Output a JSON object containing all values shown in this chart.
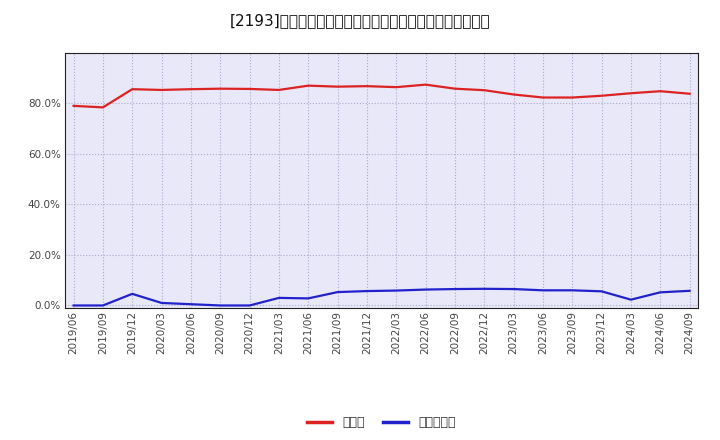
{
  "title": "[2193]　現須金、有利子負債の総資産に対する比率の推移",
  "x_labels": [
    "2019/06",
    "2019/09",
    "2019/12",
    "2020/03",
    "2020/06",
    "2020/09",
    "2020/12",
    "2021/03",
    "2021/06",
    "2021/09",
    "2021/12",
    "2022/03",
    "2022/06",
    "2022/09",
    "2022/12",
    "2023/03",
    "2023/06",
    "2023/09",
    "2023/12",
    "2024/03",
    "2024/06",
    "2024/09"
  ],
  "cash_values": [
    0.79,
    0.784,
    0.856,
    0.853,
    0.856,
    0.858,
    0.857,
    0.853,
    0.87,
    0.866,
    0.868,
    0.864,
    0.874,
    0.858,
    0.852,
    0.835,
    0.823,
    0.823,
    0.83,
    0.84,
    0.848,
    0.838
  ],
  "debt_values": [
    0.0,
    0.0,
    0.046,
    0.01,
    0.005,
    0.0,
    0.0,
    0.03,
    0.028,
    0.053,
    0.057,
    0.059,
    0.063,
    0.065,
    0.066,
    0.065,
    0.06,
    0.06,
    0.056,
    0.023,
    0.052,
    0.058
  ],
  "cash_color": "#dd2222",
  "debt_color": "#2222cc",
  "bg_color": "#ffffff",
  "plot_bg_color": "#e8e8f8",
  "grid_color": "#aaaacc",
  "yticks": [
    0.0,
    0.2,
    0.4,
    0.6,
    0.8
  ],
  "legend_cash": "現須金",
  "legend_debt": "有利子負債",
  "title_fontsize": 11,
  "legend_fontsize": 9,
  "tick_fontsize": 7.5,
  "line_width": 1.6
}
